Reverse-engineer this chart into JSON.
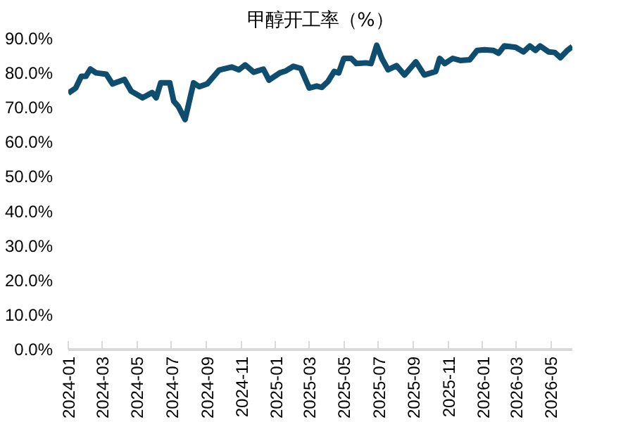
{
  "chart_data": {
    "type": "line",
    "title": "甲醇开工率（%）",
    "x": [
      "2024-01-01",
      "2024-01-14",
      "2024-01-24",
      "2024-02-01",
      "2024-02-09",
      "2024-02-19",
      "2024-03-08",
      "2024-03-19",
      "2024-04-09",
      "2024-04-21",
      "2024-05-11",
      "2024-05-28",
      "2024-06-04",
      "2024-06-12",
      "2024-06-28",
      "2024-07-05",
      "2024-07-13",
      "2024-07-25",
      "2024-08-09",
      "2024-08-19",
      "2024-09-02",
      "2024-09-23",
      "2024-10-15",
      "2024-10-28",
      "2024-11-08",
      "2024-11-23",
      "2024-12-10",
      "2024-12-20",
      "2025-01-08",
      "2025-01-19",
      "2025-02-01",
      "2025-02-14",
      "2025-03-01",
      "2025-03-14",
      "2025-03-23",
      "2025-04-03",
      "2025-04-14",
      "2025-04-22",
      "2025-05-01",
      "2025-05-14",
      "2025-05-23",
      "2025-06-09",
      "2025-06-18",
      "2025-06-28",
      "2025-07-07",
      "2025-07-18",
      "2025-08-02",
      "2025-08-16",
      "2025-09-05",
      "2025-09-20",
      "2025-10-10",
      "2025-10-17",
      "2025-10-26",
      "2025-11-09",
      "2025-11-22",
      "2025-12-09",
      "2025-12-22",
      "2026-01-04",
      "2026-01-20",
      "2026-01-29",
      "2026-02-08",
      "2026-02-28",
      "2026-03-14",
      "2026-03-25",
      "2026-04-04",
      "2026-04-12",
      "2026-04-27",
      "2026-05-08",
      "2026-05-18",
      "2026-05-30",
      "2026-06-08"
    ],
    "series": [
      {
        "color": "#0e4d6e",
        "values": [
          74.2,
          75.7,
          79.1,
          79.1,
          81.2,
          80.1,
          79.7,
          76.9,
          78.2,
          74.8,
          72.9,
          74.4,
          72.9,
          77.2,
          77.2,
          71.9,
          70.4,
          66.6,
          77.2,
          76.1,
          76.9,
          80.9,
          81.8,
          81.0,
          82.4,
          80.3,
          81.2,
          78.0,
          80.1,
          80.7,
          82.0,
          81.4,
          75.7,
          76.3,
          75.9,
          77.6,
          80.5,
          80.1,
          84.3,
          84.3,
          82.8,
          83.0,
          82.8,
          88.1,
          84.3,
          81.0,
          82.2,
          79.5,
          83.3,
          79.5,
          80.5,
          84.3,
          82.8,
          84.3,
          83.7,
          83.9,
          86.6,
          86.8,
          86.6,
          85.8,
          87.9,
          87.5,
          86.2,
          87.9,
          86.6,
          87.9,
          86.2,
          86.0,
          84.5,
          86.6,
          87.7
        ]
      }
    ],
    "xlim": [
      "2024-01-01",
      "2026-06-08"
    ],
    "xticks": [
      "2024-01",
      "2024-03",
      "2024-05",
      "2024-07",
      "2024-09",
      "2024-11",
      "2025-01",
      "2025-03",
      "2025-05",
      "2025-07",
      "2025-09",
      "2025-11",
      "2026-01",
      "2026-03",
      "2026-05"
    ],
    "ylim": [
      0,
      90
    ],
    "yticks": [
      {
        "value": 0,
        "label": "0.0%"
      },
      {
        "value": 10,
        "label": "10.0%"
      },
      {
        "value": 20,
        "label": "20.0%"
      },
      {
        "value": 30,
        "label": "30.0%"
      },
      {
        "value": 40,
        "label": "40.0%"
      },
      {
        "value": 50,
        "label": "50.0%"
      },
      {
        "value": 60,
        "label": "60.0%"
      },
      {
        "value": 70,
        "label": "70.0%"
      },
      {
        "value": 80,
        "label": "80.0%"
      },
      {
        "value": 90,
        "label": "90.0%"
      }
    ],
    "grid": false,
    "marker": "none",
    "line_style": "solid"
  }
}
